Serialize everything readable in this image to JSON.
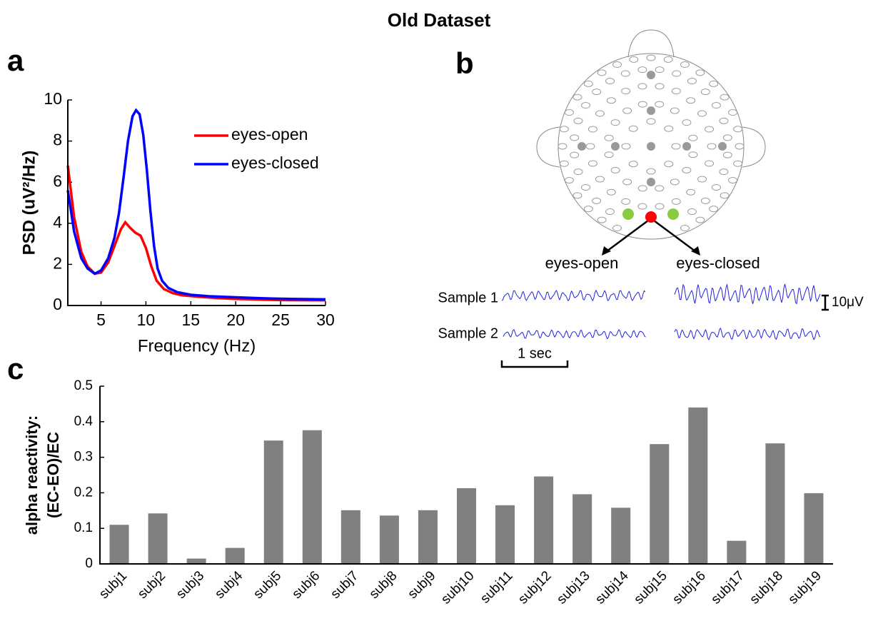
{
  "title": "Old Dataset",
  "chart_data": [
    {
      "type": "line",
      "panel_label": "a",
      "x_label": "Frequency (Hz)",
      "y_label": "PSD (uV²/Hz)",
      "xlim": [
        1.3,
        30
      ],
      "ylim": [
        0,
        10
      ],
      "xticks": [
        5,
        10,
        15,
        20,
        25,
        30
      ],
      "yticks": [
        0,
        2,
        4,
        6,
        8,
        10
      ],
      "grid": false,
      "legend": "upper right",
      "series": [
        {
          "name": "eyes-open",
          "color": "#ff0000",
          "x": [
            1.3,
            2,
            2.8,
            3.5,
            4.3,
            5,
            5.8,
            6.5,
            7.2,
            7.7,
            8.2,
            8.8,
            9.4,
            10,
            10.6,
            11.2,
            12,
            13,
            14,
            16,
            18,
            20,
            23,
            26,
            30
          ],
          "values": [
            6.8,
            4.3,
            2.6,
            1.9,
            1.55,
            1.6,
            2.1,
            2.9,
            3.7,
            4.05,
            3.8,
            3.55,
            3.4,
            2.8,
            1.9,
            1.2,
            0.8,
            0.6,
            0.5,
            0.42,
            0.36,
            0.32,
            0.28,
            0.26,
            0.25
          ]
        },
        {
          "name": "eyes-closed",
          "color": "#0000ff",
          "x": [
            1.3,
            2,
            2.8,
            3.5,
            4.3,
            5,
            5.8,
            6.5,
            7,
            7.5,
            8,
            8.5,
            8.9,
            9.3,
            9.7,
            10.1,
            10.5,
            10.9,
            11.3,
            11.8,
            12.5,
            13.5,
            15,
            17,
            20,
            23,
            26,
            30
          ],
          "values": [
            5.6,
            3.6,
            2.3,
            1.8,
            1.55,
            1.7,
            2.3,
            3.3,
            4.5,
            6.2,
            8,
            9.2,
            9.5,
            9.3,
            8.3,
            6.6,
            4.6,
            2.9,
            1.8,
            1.2,
            0.85,
            0.65,
            0.52,
            0.45,
            0.4,
            0.35,
            0.32,
            0.3
          ]
        }
      ]
    },
    {
      "type": "bar",
      "panel_label": "c",
      "y_label": [
        "alpha reactivity:",
        "(EC-EO)/EC"
      ],
      "categories": [
        "subj1",
        "subj2",
        "subj3",
        "subj4",
        "subj5",
        "subj6",
        "subj7",
        "subj8",
        "subj9",
        "subj10",
        "subj11",
        "subj12",
        "subj13",
        "subj14",
        "subj15",
        "subj16",
        "subj17",
        "subj18",
        "subj19"
      ],
      "values": [
        0.11,
        0.142,
        0.015,
        0.045,
        0.347,
        0.376,
        0.151,
        0.136,
        0.151,
        0.213,
        0.165,
        0.246,
        0.196,
        0.158,
        0.337,
        0.44,
        0.065,
        0.339,
        0.199
      ],
      "color": "#808080",
      "ylim": [
        0,
        0.5
      ],
      "yticks": [
        0,
        0.1,
        0.2,
        0.3,
        0.4,
        0.5
      ],
      "grid": false
    }
  ],
  "diagram": {
    "panel_label": "b",
    "arrow_labels": [
      "eyes-open",
      "eyes-closed"
    ],
    "rows": [
      "Sample 1",
      "Sample 2"
    ],
    "time_scale": "1 sec",
    "amplitude_scale": "10μV"
  }
}
